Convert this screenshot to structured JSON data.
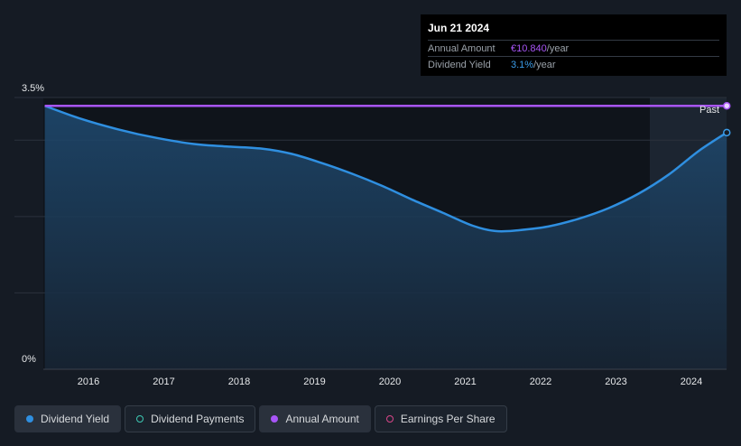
{
  "chart_data": {
    "type": "line",
    "x_ticks": [
      "2016",
      "2017",
      "2018",
      "2019",
      "2020",
      "2021",
      "2022",
      "2023",
      "2024"
    ],
    "y_ticks": [
      "3.5%",
      "0%"
    ],
    "ylim": [
      0,
      3.5
    ],
    "past_label": "Past",
    "series": [
      {
        "name": "Dividend Yield",
        "color": "#2f8fe0",
        "points": [
          [
            2015.42,
            3.45
          ],
          [
            2015.9,
            3.28
          ],
          [
            2016.4,
            3.14
          ],
          [
            2016.9,
            3.03
          ],
          [
            2017.4,
            2.95
          ],
          [
            2017.8,
            2.92
          ],
          [
            2018.3,
            2.89
          ],
          [
            2018.7,
            2.82
          ],
          [
            2019.1,
            2.7
          ],
          [
            2019.5,
            2.56
          ],
          [
            2019.9,
            2.4
          ],
          [
            2020.3,
            2.22
          ],
          [
            2020.7,
            2.05
          ],
          [
            2021.1,
            1.88
          ],
          [
            2021.4,
            1.81
          ],
          [
            2021.7,
            1.82
          ],
          [
            2022.1,
            1.87
          ],
          [
            2022.5,
            1.97
          ],
          [
            2022.9,
            2.11
          ],
          [
            2023.3,
            2.3
          ],
          [
            2023.7,
            2.55
          ],
          [
            2024.1,
            2.86
          ],
          [
            2024.47,
            3.1
          ]
        ]
      },
      {
        "name": "Annual Amount",
        "color": "#a855f7",
        "points": [
          [
            2015.42,
            3.45
          ],
          [
            2024.47,
            3.45
          ]
        ]
      }
    ]
  },
  "tooltip": {
    "date": "Jun 21 2024",
    "annual_amount_label": "Annual Amount",
    "annual_amount_value": "€10.840",
    "annual_amount_unit": "/year",
    "dividend_yield_label": "Dividend Yield",
    "dividend_yield_value": "3.1%",
    "dividend_yield_unit": "/year"
  },
  "legend": [
    {
      "label": "Dividend Yield",
      "color": "#2f8fe0",
      "filled": true,
      "active": true
    },
    {
      "label": "Dividend Payments",
      "color": "#3ec9b4",
      "filled": false,
      "active": false
    },
    {
      "label": "Annual Amount",
      "color": "#a855f7",
      "filled": true,
      "active": true
    },
    {
      "label": "Earnings Per Share",
      "color": "#d9468a",
      "filled": false,
      "active": false
    }
  ]
}
